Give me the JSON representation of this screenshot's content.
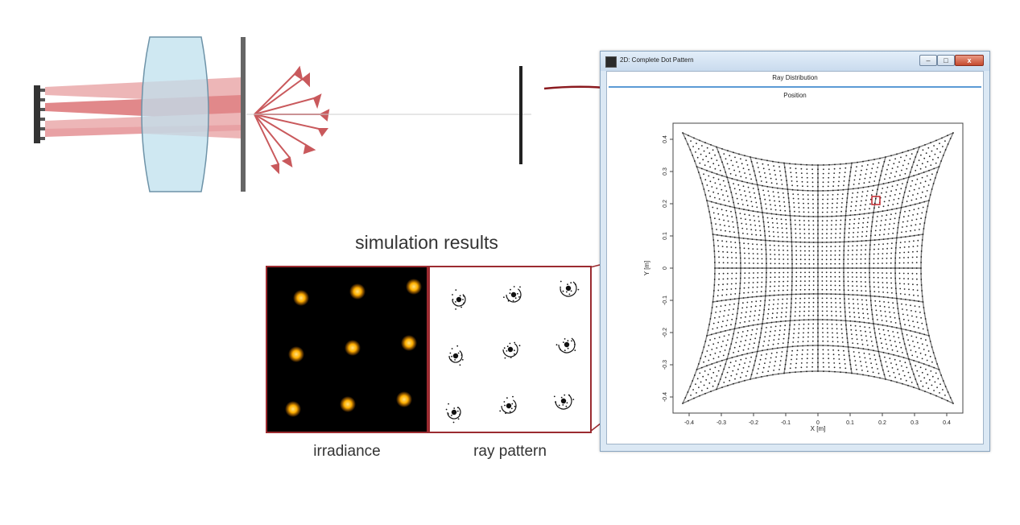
{
  "simulation": {
    "title": "simulation results",
    "irradiance_caption": "irradiance",
    "ray_pattern_caption": "ray pattern"
  },
  "window": {
    "title": "2D: Complete Dot Pattern",
    "menu_label": "Ray Distribution",
    "sub_label": "Position",
    "close_glyph": "x"
  },
  "colors": {
    "beam": "#c9272c",
    "lens": "#bfe0ee",
    "frame": "#9b2b30",
    "spot": "#ffb000"
  },
  "chart_data": {
    "type": "scatter",
    "title": "",
    "xlabel": "X [m]",
    "ylabel": "Y [m]",
    "xlim": [
      -0.45,
      0.45
    ],
    "ylim": [
      -0.45,
      0.45
    ],
    "xticks": [
      "-0.4",
      "-0.3",
      "-0.2",
      "-0.1",
      "0",
      "0.1",
      "0.2",
      "0.3",
      "0.4"
    ],
    "yticks": [
      "-0.4",
      "-0.3",
      "-0.2",
      "-0.1",
      "0",
      "0.1",
      "0.2",
      "0.3",
      "0.4"
    ],
    "grid_cells": [
      8,
      8
    ],
    "dots_per_cell": 6,
    "corners": [
      -0.42,
      0.42
    ],
    "edge_midpoint": 0.32
  }
}
